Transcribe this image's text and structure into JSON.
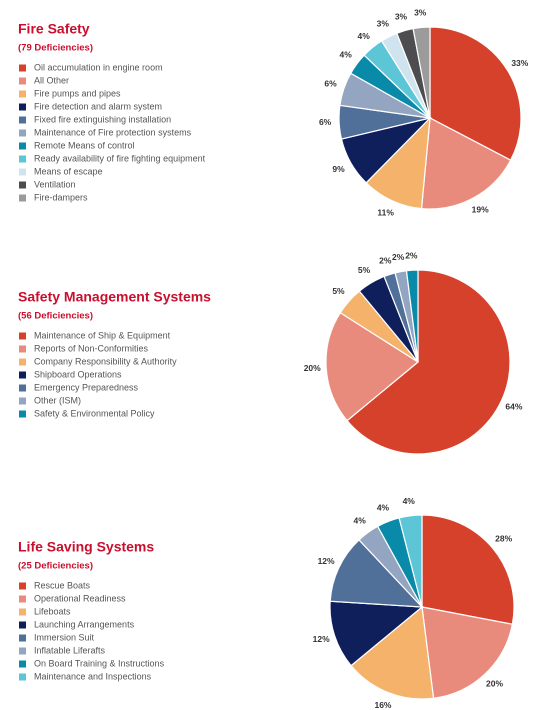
{
  "chart_data": [
    {
      "type": "pie",
      "title": "Fire Safety",
      "subtitle": "(79 Deficiencies)",
      "categories": [
        "Oil accumulation in engine room",
        "All Other",
        "Fire pumps and pipes",
        "Fire detection and alarm system",
        "Fixed fire extinguishing installation",
        "Maintenance of Fire protection systems",
        "Remote Means of control",
        "Ready availability of fire fighting equipment",
        "Means of escape",
        "Ventilation",
        "Fire-dampers"
      ],
      "values": [
        33,
        19,
        11,
        9,
        6,
        6,
        4,
        4,
        3,
        3,
        3
      ],
      "value_labels": [
        "33%",
        "19%",
        "11%",
        "9%",
        "6%",
        "6%",
        "4%",
        "4%",
        "3%",
        "3%",
        "3%"
      ],
      "colors": [
        "#d5412b",
        "#e98b7c",
        "#f4b26a",
        "#0f1f5c",
        "#50709a",
        "#93a5c0",
        "#0a8aa9",
        "#5cc6d7",
        "#cfe4ef",
        "#4d4d4f",
        "#9b9b9b"
      ]
    },
    {
      "type": "pie",
      "title": "Safety Management Systems",
      "subtitle": "(56 Deficiencies)",
      "categories": [
        "Maintenance of Ship & Equipment",
        "Reports of Non-Conformities",
        "Company Responsibility & Authority",
        "Shipboard Operations",
        "Emergency Preparedness",
        "Other (ISM)",
        "Safety & Environmental Policy"
      ],
      "values": [
        64,
        20,
        5,
        5,
        2,
        2,
        2
      ],
      "value_labels": [
        "64%",
        "20%",
        "5%",
        "5%",
        "2%",
        "2%",
        "2%"
      ],
      "colors": [
        "#d5412b",
        "#e98b7c",
        "#f4b26a",
        "#0f1f5c",
        "#50709a",
        "#93a5c0",
        "#0a8aa9"
      ]
    },
    {
      "type": "pie",
      "title": "Life Saving Systems",
      "subtitle": "(25 Deficiencies)",
      "categories": [
        "Rescue Boats",
        "Operational Readiness",
        "Lifeboats",
        "Launching Arrangements",
        "Immersion Suit",
        "Inflatable Liferafts",
        "On Board Training & Instructions",
        "Maintenance and Inspections"
      ],
      "values": [
        28,
        20,
        16,
        12,
        12,
        4,
        4,
        4
      ],
      "value_labels": [
        "28%",
        "20%",
        "16%",
        "12%",
        "12%",
        "4%",
        "4%",
        "4%"
      ],
      "colors": [
        "#d5412b",
        "#e98b7c",
        "#f4b26a",
        "#0f1f5c",
        "#50709a",
        "#93a5c0",
        "#0a8aa9",
        "#5cc6d7"
      ]
    }
  ]
}
